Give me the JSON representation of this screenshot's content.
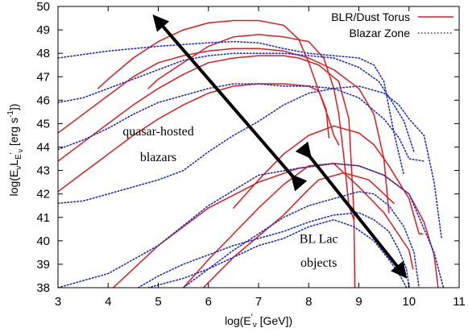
{
  "chart_data": {
    "type": "line",
    "xlabel_parts": [
      "log(E",
      "′",
      "ν",
      " [GeV])"
    ],
    "ylabel_parts": [
      "log(E",
      "ν",
      "L",
      "E",
      "′",
      "ν",
      " [erg s",
      "-1",
      "])"
    ],
    "xlim": [
      3,
      11
    ],
    "ylim": [
      38,
      50
    ],
    "xticks": [
      3,
      4,
      5,
      6,
      7,
      8,
      9,
      10,
      11
    ],
    "yticks": [
      38,
      39,
      40,
      41,
      42,
      43,
      44,
      45,
      46,
      47,
      48,
      49,
      50
    ],
    "legend_position": "top-right",
    "colors": {
      "blr": "#e41a1c",
      "blazar": "#1f2bd6",
      "arrow": "#000000"
    },
    "series": [
      {
        "name": "BLR/Dust Torus",
        "style": "solid",
        "curves": [
          [
            [
              3.0,
              42.1
            ],
            [
              3.5,
              42.9
            ],
            [
              4.0,
              43.7
            ],
            [
              4.5,
              44.5
            ],
            [
              5.0,
              45.2
            ],
            [
              5.5,
              45.8
            ],
            [
              6.0,
              46.3
            ],
            [
              6.5,
              46.6
            ],
            [
              7.0,
              46.7
            ],
            [
              7.5,
              46.7
            ],
            [
              8.0,
              46.6
            ],
            [
              8.2,
              46.4
            ],
            [
              8.35,
              45.6
            ],
            [
              8.4,
              44.4
            ]
          ],
          [
            [
              3.0,
              43.4
            ],
            [
              3.5,
              44.2
            ],
            [
              4.0,
              45.0
            ],
            [
              4.5,
              45.8
            ],
            [
              5.0,
              46.5
            ],
            [
              5.5,
              47.1
            ],
            [
              6.0,
              47.6
            ],
            [
              6.5,
              47.8
            ],
            [
              7.0,
              47.9
            ],
            [
              7.5,
              47.9
            ],
            [
              7.8,
              47.8
            ],
            [
              8.2,
              47.5
            ],
            [
              8.6,
              46.8
            ],
            [
              8.8,
              45.2
            ],
            [
              8.9,
              41.2
            ],
            [
              8.92,
              38.0
            ]
          ],
          [
            [
              3.0,
              44.6
            ],
            [
              3.5,
              45.4
            ],
            [
              4.0,
              46.2
            ],
            [
              4.5,
              47.0
            ],
            [
              5.0,
              47.6
            ],
            [
              5.5,
              47.9
            ],
            [
              6.0,
              48.1
            ],
            [
              6.5,
              48.2
            ],
            [
              7.0,
              48.2
            ],
            [
              7.5,
              48.1
            ],
            [
              8.0,
              47.8
            ],
            [
              8.5,
              47.3
            ],
            [
              9.0,
              46.5
            ],
            [
              9.3,
              45.4
            ],
            [
              9.5,
              43.5
            ],
            [
              9.6,
              41.2
            ]
          ],
          [
            [
              4.8,
              46.5
            ],
            [
              5.0,
              46.9
            ],
            [
              5.5,
              47.6
            ],
            [
              6.0,
              48.3
            ],
            [
              6.5,
              48.7
            ],
            [
              7.0,
              48.8
            ],
            [
              7.5,
              48.7
            ],
            [
              8.0,
              48.5
            ],
            [
              8.3,
              47.8
            ],
            [
              8.5,
              46.5
            ],
            [
              8.6,
              45.4
            ],
            [
              8.7,
              43.6
            ],
            [
              8.8,
              41.5
            ],
            [
              8.9,
              40.9
            ]
          ],
          [
            [
              3.8,
              46.5
            ],
            [
              4.0,
              46.9
            ],
            [
              4.5,
              47.8
            ],
            [
              5.0,
              48.5
            ],
            [
              5.5,
              49.0
            ],
            [
              6.0,
              49.3
            ],
            [
              6.5,
              49.4
            ],
            [
              7.0,
              49.4
            ],
            [
              7.5,
              49.2
            ],
            [
              7.8,
              48.6
            ],
            [
              8.0,
              47.6
            ],
            [
              8.2,
              46.4
            ],
            [
              8.4,
              45.2
            ],
            [
              8.5,
              44.5
            ],
            [
              8.6,
              44.1
            ]
          ],
          [
            [
              4.1,
              38.0
            ],
            [
              5.0,
              39.8
            ],
            [
              6.0,
              41.4
            ],
            [
              7.0,
              42.5
            ],
            [
              7.8,
              43.1
            ],
            [
              8.5,
              43.3
            ],
            [
              9.0,
              43.2
            ],
            [
              9.5,
              42.8
            ],
            [
              10.0,
              42.0
            ],
            [
              10.3,
              40.8
            ],
            [
              10.5,
              39.4
            ],
            [
              10.58,
              38.0
            ]
          ],
          [
            [
              5.5,
              38.0
            ],
            [
              6.0,
              39.2
            ],
            [
              6.5,
              40.3
            ],
            [
              7.0,
              41.4
            ],
            [
              7.5,
              42.4
            ],
            [
              8.0,
              43.2
            ],
            [
              8.5,
              43.3
            ],
            [
              9.0,
              42.3
            ],
            [
              9.5,
              41.2
            ],
            [
              10.0,
              39.6
            ],
            [
              10.08,
              38.8
            ]
          ],
          [
            [
              5.9,
              38.0
            ],
            [
              6.5,
              39.3
            ],
            [
              7.0,
              40.2
            ],
            [
              7.5,
              41.1
            ],
            [
              8.0,
              42.2
            ],
            [
              8.2,
              42.6
            ],
            [
              8.7,
              42.9
            ],
            [
              9.2,
              42.6
            ],
            [
              9.5,
              42.0
            ],
            [
              9.7,
              41.6
            ]
          ],
          [
            [
              6.5,
              41.4
            ],
            [
              7.0,
              42.6
            ],
            [
              7.5,
              43.7
            ],
            [
              8.0,
              44.5
            ],
            [
              8.5,
              44.9
            ],
            [
              9.0,
              44.6
            ],
            [
              9.3,
              44.1
            ],
            [
              9.6,
              43.2
            ],
            [
              10.0,
              41.8
            ],
            [
              10.2,
              40.3
            ],
            [
              10.27,
              40.3
            ]
          ]
        ]
      },
      {
        "name": "Blazar Zone",
        "style": "dotted",
        "curves": [
          [
            [
              3.0,
              47.8
            ],
            [
              4.0,
              48.1
            ],
            [
              5.0,
              48.3
            ],
            [
              6.0,
              48.45
            ],
            [
              6.5,
              48.5
            ],
            [
              7.0,
              48.45
            ],
            [
              7.5,
              48.2
            ],
            [
              8.0,
              48.0
            ],
            [
              9.0,
              47.8
            ],
            [
              9.3,
              47.5
            ],
            [
              9.5,
              46.8
            ],
            [
              9.7,
              44.6
            ],
            [
              9.9,
              42.8
            ]
          ],
          [
            [
              3.0,
              45.9
            ],
            [
              3.5,
              46.1
            ],
            [
              4.0,
              46.5
            ],
            [
              4.5,
              46.9
            ],
            [
              5.0,
              47.3
            ],
            [
              5.5,
              47.7
            ],
            [
              6.0,
              47.9
            ],
            [
              6.5,
              48.0
            ],
            [
              7.0,
              48.0
            ],
            [
              7.5,
              48.0
            ],
            [
              8.0,
              47.9
            ],
            [
              8.5,
              47.8
            ],
            [
              9.0,
              47.4
            ],
            [
              9.4,
              46.8
            ],
            [
              9.7,
              45.8
            ],
            [
              9.9,
              45.1
            ],
            [
              10.1,
              43.8
            ]
          ],
          [
            [
              3.0,
              43.9
            ],
            [
              3.5,
              44.3
            ],
            [
              4.0,
              44.8
            ],
            [
              4.5,
              45.4
            ],
            [
              5.0,
              45.9
            ],
            [
              5.5,
              46.2
            ],
            [
              6.0,
              46.5
            ],
            [
              6.5,
              46.7
            ],
            [
              7.0,
              46.7
            ],
            [
              7.5,
              46.6
            ],
            [
              8.0,
              46.6
            ],
            [
              8.5,
              46.5
            ],
            [
              9.0,
              46.1
            ],
            [
              9.5,
              45.2
            ],
            [
              9.8,
              44.4
            ],
            [
              10.0,
              43.5
            ],
            [
              10.3,
              43.4
            ]
          ],
          [
            [
              3.0,
              41.6
            ],
            [
              3.5,
              41.7
            ],
            [
              4.0,
              42.0
            ],
            [
              5.0,
              42.6
            ],
            [
              5.5,
              43.0
            ],
            [
              6.0,
              43.8
            ],
            [
              6.5,
              44.5
            ],
            [
              7.0,
              45.1
            ],
            [
              7.5,
              45.8
            ],
            [
              8.0,
              46.3
            ],
            [
              8.5,
              46.5
            ],
            [
              9.0,
              46.6
            ],
            [
              9.5,
              46.3
            ],
            [
              9.8,
              45.8
            ],
            [
              10.0,
              45.2
            ],
            [
              10.3,
              44.5
            ],
            [
              10.5,
              42.5
            ],
            [
              10.65,
              40.1
            ]
          ],
          [
            [
              3.0,
              38.0
            ],
            [
              4.0,
              38.6
            ],
            [
              5.0,
              39.8
            ],
            [
              6.0,
              41.5
            ],
            [
              7.0,
              42.8
            ],
            [
              7.8,
              43.1
            ],
            [
              8.5,
              43.3
            ],
            [
              9.0,
              43.2
            ],
            [
              9.5,
              42.8
            ],
            [
              10.0,
              42.0
            ],
            [
              10.5,
              39.5
            ],
            [
              10.7,
              37.9
            ]
          ],
          [
            [
              5.5,
              38.0
            ],
            [
              6.0,
              38.8
            ],
            [
              6.5,
              39.6
            ],
            [
              7.0,
              40.3
            ],
            [
              7.5,
              41.0
            ],
            [
              8.0,
              41.5
            ],
            [
              8.5,
              41.8
            ],
            [
              9.0,
              42.1
            ],
            [
              9.3,
              42.0
            ],
            [
              9.6,
              41.5
            ],
            [
              9.9,
              40.6
            ],
            [
              10.1,
              39.5
            ],
            [
              10.2,
              38.0
            ]
          ],
          [
            [
              4.6,
              38.0
            ],
            [
              5.0,
              38.5
            ],
            [
              5.5,
              39.0
            ],
            [
              6.0,
              39.4
            ],
            [
              6.5,
              39.8
            ],
            [
              7.0,
              40.1
            ],
            [
              7.5,
              40.4
            ],
            [
              8.0,
              40.8
            ],
            [
              8.5,
              41.1
            ],
            [
              9.0,
              41.2
            ],
            [
              9.3,
              40.9
            ],
            [
              9.6,
              40.4
            ],
            [
              9.8,
              39.6
            ],
            [
              9.95,
              38.8
            ],
            [
              10.0,
              38.0
            ]
          ],
          [
            [
              4.8,
              38.0
            ],
            [
              5.5,
              38.4
            ],
            [
              6.0,
              38.8
            ],
            [
              6.5,
              39.3
            ],
            [
              7.0,
              39.8
            ],
            [
              7.5,
              40.1
            ],
            [
              8.0,
              40.6
            ],
            [
              8.5,
              40.9
            ],
            [
              8.9,
              40.6
            ],
            [
              9.3,
              40.0
            ],
            [
              9.6,
              39.2
            ],
            [
              9.8,
              38.6
            ],
            [
              9.95,
              38.0
            ]
          ]
        ]
      }
    ],
    "arrows": [
      {
        "from": [
          7.7,
          42.7
        ],
        "to": [
          4.95,
          49.5
        ]
      },
      {
        "from": [
          8.0,
          43.65
        ],
        "to": [
          9.9,
          38.55
        ]
      }
    ],
    "annotations": [
      {
        "text": "quasar-hosted",
        "at": [
          5.0,
          44.5
        ]
      },
      {
        "text": "blazars",
        "at": [
          5.0,
          43.4
        ]
      },
      {
        "text": "BL Lac",
        "at": [
          8.2,
          39.9
        ]
      },
      {
        "text": "objects",
        "at": [
          8.2,
          38.9
        ]
      }
    ]
  }
}
